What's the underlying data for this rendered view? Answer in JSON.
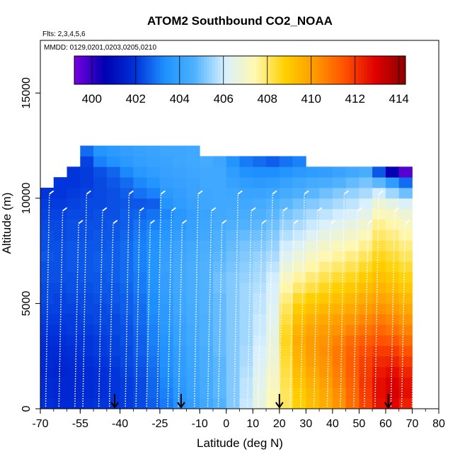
{
  "chart_data": {
    "type": "heatmap",
    "title": "ATOM2 Southbound CO2_NOAA",
    "flights_note": "Flts: 2,3,4,5,6",
    "dates_note": "MMDD: 0129,0201,0203,0205,0210",
    "xlabel": "Latitude (deg N)",
    "ylabel": "Altitude (m)",
    "xlim": [
      -70,
      80
    ],
    "ylim": [
      0,
      17500
    ],
    "x_ticks": [
      -70,
      -55,
      -40,
      -25,
      -10,
      0,
      10,
      20,
      30,
      40,
      50,
      60,
      70,
      80
    ],
    "y_ticks": [
      0,
      5000,
      10000,
      15000
    ],
    "colorbar": {
      "min": 399.2,
      "max": 414.3,
      "ticks": [
        400,
        402,
        404,
        406,
        408,
        410,
        412,
        414
      ],
      "colors": [
        "#7a00e0",
        "#0000b0",
        "#0030d8",
        "#1e90ff",
        "#4fb2ff",
        "#d8f0ff",
        "#fff8b0",
        "#ffd000",
        "#ff9900",
        "#ff5000",
        "#e00000",
        "#8b0000"
      ]
    },
    "flight_arrows_lat": [
      -42,
      -17,
      20,
      61
    ],
    "profile_latitudes": [
      -68,
      -63,
      -57,
      -54,
      -48,
      -44,
      -38,
      -34,
      -30,
      -26,
      -22,
      -18,
      -12,
      -7,
      -3,
      3,
      8,
      12,
      16,
      20,
      24,
      28,
      33,
      38,
      43,
      48,
      52,
      56,
      62,
      66,
      70
    ],
    "latitude_bands": [
      {
        "lat": -67.5,
        "hmax": 10500,
        "values": [
          401.9,
          401.8,
          401.8,
          401.7,
          401.8,
          401.8,
          401.9,
          402.0,
          402.1,
          402.2,
          402.3,
          402.3,
          402.4,
          402.4,
          402.5,
          402.4,
          402.4,
          402.3,
          402.2,
          402.1,
          402.0
        ]
      },
      {
        "lat": -62.5,
        "hmax": 11000,
        "values": [
          401.8,
          401.7,
          401.7,
          401.6,
          401.7,
          401.8,
          401.9,
          402.0,
          402.1,
          402.2,
          402.2,
          402.3,
          402.4,
          402.4,
          402.4,
          402.4,
          402.3,
          402.3,
          402.2,
          402.1,
          402.0,
          402.0
        ]
      },
      {
        "lat": -57.5,
        "hmax": 11500,
        "values": [
          401.8,
          401.7,
          401.7,
          401.7,
          401.8,
          401.9,
          402.0,
          402.1,
          402.1,
          402.2,
          402.3,
          402.4,
          402.4,
          402.5,
          402.5,
          402.5,
          402.4,
          402.4,
          402.3,
          402.2,
          402.1,
          402.0,
          402.0
        ]
      },
      {
        "lat": -52.5,
        "hmax": 12500,
        "values": [
          401.9,
          401.8,
          401.8,
          401.8,
          401.9,
          402.0,
          402.0,
          402.1,
          402.2,
          402.3,
          402.3,
          402.4,
          402.5,
          402.5,
          402.5,
          402.5,
          402.4,
          402.4,
          402.3,
          402.3,
          402.2,
          402.1,
          402.1,
          402.2,
          402.8
        ]
      },
      {
        "lat": -47.5,
        "hmax": 12500,
        "values": [
          402.0,
          401.9,
          401.9,
          401.9,
          402.0,
          402.1,
          402.1,
          402.2,
          402.3,
          402.3,
          402.4,
          402.5,
          402.5,
          402.6,
          402.6,
          402.5,
          402.5,
          402.4,
          402.4,
          402.3,
          402.3,
          402.3,
          402.4,
          403.1,
          403.5
        ]
      },
      {
        "lat": -42.5,
        "hmax": 12500,
        "values": [
          402.0,
          402.0,
          402.0,
          402.0,
          402.1,
          402.2,
          402.2,
          402.3,
          402.3,
          402.4,
          402.5,
          402.5,
          402.6,
          402.6,
          402.6,
          402.6,
          402.5,
          402.5,
          402.4,
          402.4,
          402.4,
          402.5,
          402.7,
          403.4,
          403.7
        ]
      },
      {
        "lat": -37.5,
        "hmax": 12500,
        "values": [
          402.1,
          402.1,
          402.1,
          402.2,
          402.3,
          402.3,
          402.4,
          402.4,
          402.5,
          402.6,
          402.6,
          402.7,
          402.8,
          402.8,
          402.8,
          402.8,
          402.7,
          402.6,
          402.6,
          402.5,
          402.6,
          402.8,
          403.2,
          403.7,
          403.9
        ]
      },
      {
        "lat": -32.5,
        "hmax": 12500,
        "values": [
          402.3,
          402.3,
          402.3,
          402.4,
          402.5,
          402.6,
          402.6,
          402.7,
          402.8,
          402.8,
          402.9,
          403.0,
          403.0,
          403.1,
          403.1,
          403.1,
          403.0,
          402.9,
          402.7,
          402.5,
          402.9,
          403.2,
          403.6,
          403.9,
          404.0
        ]
      },
      {
        "lat": -27.5,
        "hmax": 12500,
        "values": [
          402.6,
          402.7,
          402.7,
          402.8,
          402.9,
          403.0,
          403.1,
          403.1,
          403.2,
          403.3,
          403.3,
          403.4,
          403.5,
          403.5,
          403.5,
          403.4,
          403.3,
          403.1,
          402.9,
          402.6,
          403.1,
          403.5,
          403.8,
          404.0,
          404.1
        ]
      },
      {
        "lat": -22.5,
        "hmax": 12500,
        "values": [
          403.0,
          403.1,
          403.2,
          403.3,
          403.4,
          403.4,
          403.5,
          403.6,
          403.7,
          403.7,
          403.8,
          403.9,
          403.9,
          404.0,
          403.9,
          403.8,
          403.6,
          403.4,
          403.2,
          403.5,
          403.7,
          403.9,
          404.0,
          404.1,
          404.2
        ]
      },
      {
        "lat": -17.5,
        "hmax": 12500,
        "values": [
          403.5,
          403.6,
          403.7,
          403.8,
          403.8,
          403.9,
          404.0,
          404.0,
          404.1,
          404.2,
          404.2,
          404.3,
          404.3,
          404.3,
          404.2,
          404.1,
          403.9,
          403.7,
          403.6,
          403.8,
          403.9,
          404.0,
          404.1,
          404.2,
          404.2
        ]
      },
      {
        "lat": -12.5,
        "hmax": 12500,
        "values": [
          403.9,
          404.0,
          404.1,
          404.1,
          404.2,
          404.2,
          404.3,
          404.3,
          404.4,
          404.4,
          404.5,
          404.5,
          404.5,
          404.5,
          404.4,
          404.3,
          404.1,
          404.0,
          403.9,
          404.0,
          404.1,
          404.1,
          404.2,
          404.3,
          404.3
        ]
      },
      {
        "lat": -7.5,
        "hmax": 12000,
        "values": [
          404.3,
          404.4,
          404.4,
          404.5,
          404.5,
          404.5,
          404.6,
          404.6,
          404.6,
          404.7,
          404.7,
          404.7,
          404.7,
          404.7,
          404.6,
          404.5,
          404.3,
          404.2,
          404.1,
          404.2,
          404.2,
          404.3,
          404.3,
          404.4
        ]
      },
      {
        "lat": -2.5,
        "hmax": 12000,
        "values": [
          404.7,
          404.8,
          404.8,
          404.8,
          404.8,
          404.9,
          404.9,
          404.9,
          404.9,
          404.9,
          404.9,
          405.0,
          405.0,
          404.9,
          404.8,
          404.7,
          404.6,
          404.4,
          404.3,
          404.3,
          404.3,
          404.3,
          404.3,
          404.2
        ]
      },
      {
        "lat": 2.5,
        "hmax": 12000,
        "values": [
          405.2,
          405.2,
          405.2,
          405.2,
          405.2,
          405.2,
          405.2,
          405.2,
          405.2,
          405.2,
          405.2,
          405.2,
          405.2,
          405.1,
          405.0,
          404.9,
          404.8,
          404.6,
          404.4,
          404.3,
          404.2,
          404.0,
          403.8,
          403.5
        ]
      },
      {
        "lat": 7.5,
        "hmax": 12000,
        "values": [
          405.9,
          405.8,
          405.8,
          405.7,
          405.6,
          405.6,
          405.5,
          405.5,
          405.5,
          405.5,
          405.5,
          405.5,
          405.4,
          405.3,
          405.2,
          405.1,
          404.9,
          404.7,
          404.5,
          404.3,
          404.1,
          403.8,
          403.4,
          403.0
        ]
      },
      {
        "lat": 12.5,
        "hmax": 12000,
        "values": [
          406.6,
          406.5,
          406.4,
          406.3,
          406.2,
          406.1,
          406.0,
          405.9,
          405.9,
          405.8,
          405.8,
          405.7,
          405.6,
          405.5,
          405.4,
          405.2,
          405.0,
          404.8,
          404.6,
          404.4,
          404.1,
          403.7,
          403.3,
          402.8
        ]
      },
      {
        "lat": 17.5,
        "hmax": 12000,
        "values": [
          407.4,
          407.3,
          407.1,
          407.0,
          406.8,
          406.7,
          406.6,
          406.5,
          406.4,
          406.3,
          406.2,
          406.1,
          406.0,
          405.8,
          405.6,
          405.4,
          405.2,
          405.0,
          404.8,
          404.6,
          404.2,
          403.8,
          403.3,
          402.6
        ]
      },
      {
        "lat": 22.5,
        "hmax": 12000,
        "values": [
          408.1,
          408.1,
          408.2,
          408.3,
          408.4,
          408.5,
          408.6,
          408.5,
          408.3,
          408.1,
          407.8,
          407.5,
          407.1,
          406.7,
          406.3,
          406.0,
          405.7,
          405.4,
          405.1,
          404.8,
          404.4,
          404.0,
          403.5,
          402.9
        ]
      },
      {
        "lat": 27.5,
        "hmax": 12000,
        "values": [
          408.8,
          408.9,
          409.1,
          409.3,
          409.5,
          409.6,
          409.7,
          409.5,
          409.2,
          408.9,
          408.5,
          408.0,
          407.6,
          407.1,
          406.7,
          406.3,
          405.9,
          405.6,
          405.3,
          405.0,
          404.6,
          404.2,
          403.7,
          403.1
        ]
      },
      {
        "lat": 32.5,
        "hmax": 11500,
        "values": [
          409.3,
          409.4,
          409.6,
          409.8,
          410.0,
          410.1,
          410.1,
          409.9,
          409.6,
          409.2,
          408.8,
          408.3,
          407.9,
          407.5,
          407.1,
          406.7,
          406.3,
          405.9,
          405.6,
          405.2,
          404.8,
          404.4,
          403.8
        ]
      },
      {
        "lat": 37.5,
        "hmax": 11500,
        "values": [
          409.7,
          409.8,
          410.0,
          410.2,
          410.3,
          410.4,
          410.3,
          410.1,
          409.8,
          409.4,
          409.0,
          408.6,
          408.2,
          407.8,
          407.4,
          407.0,
          406.6,
          406.2,
          405.8,
          405.4,
          405.0,
          404.5,
          403.9
        ]
      },
      {
        "lat": 42.5,
        "hmax": 11500,
        "values": [
          410.3,
          410.4,
          410.6,
          410.7,
          410.8,
          410.8,
          410.6,
          410.3,
          410.0,
          409.6,
          409.2,
          408.8,
          408.4,
          408.0,
          407.6,
          407.2,
          406.8,
          406.4,
          406.0,
          405.6,
          405.2,
          404.7,
          404.1
        ]
      },
      {
        "lat": 47.5,
        "hmax": 11500,
        "values": [
          411.0,
          411.1,
          411.2,
          411.3,
          411.3,
          411.2,
          411.0,
          410.6,
          410.2,
          409.8,
          409.4,
          409.0,
          408.6,
          408.2,
          407.8,
          407.4,
          407.0,
          406.6,
          406.2,
          405.8,
          405.4,
          404.9,
          404.3
        ]
      },
      {
        "lat": 52.5,
        "hmax": 11500,
        "values": [
          411.8,
          411.9,
          412.0,
          411.9,
          411.8,
          411.6,
          411.3,
          410.9,
          410.5,
          410.1,
          409.7,
          409.3,
          408.9,
          408.5,
          408.1,
          407.7,
          407.3,
          406.9,
          406.5,
          406.1,
          405.6,
          405.1,
          404.5
        ]
      },
      {
        "lat": 57.5,
        "hmax": 11500,
        "values": [
          412.6,
          412.7,
          412.7,
          412.5,
          412.2,
          411.9,
          411.5,
          411.1,
          410.7,
          410.3,
          409.9,
          409.5,
          409.2,
          408.9,
          408.6,
          408.3,
          408.0,
          407.7,
          407.3,
          406.8,
          406.0,
          404.8,
          402.5
        ]
      },
      {
        "lat": 62.5,
        "hmax": 11500,
        "values": [
          412.9,
          413.1,
          413.0,
          412.7,
          412.3,
          411.9,
          411.4,
          410.9,
          410.5,
          410.1,
          409.7,
          409.3,
          409.0,
          408.7,
          408.4,
          408.1,
          407.8,
          407.5,
          407.1,
          406.5,
          405.5,
          403.8,
          400.5
        ]
      },
      {
        "lat": 67.5,
        "hmax": 11500,
        "values": [
          412.4,
          412.7,
          412.6,
          412.3,
          411.9,
          411.5,
          411.0,
          410.6,
          410.2,
          409.8,
          409.4,
          409.0,
          408.7,
          408.4,
          408.1,
          407.8,
          407.5,
          407.2,
          406.8,
          406.2,
          405.0,
          402.8,
          399.6
        ]
      }
    ]
  }
}
